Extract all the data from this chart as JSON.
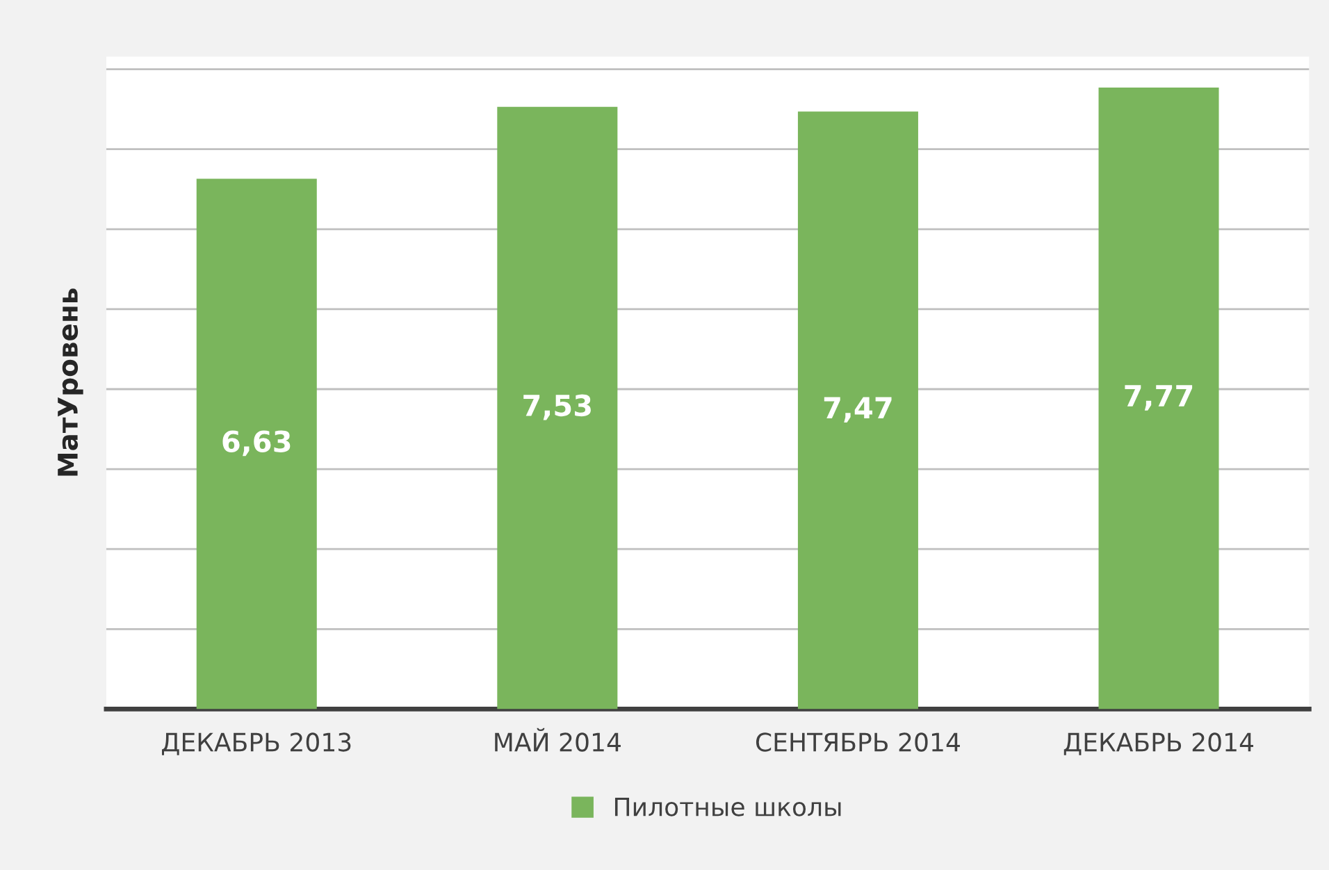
{
  "chart_data": {
    "type": "bar",
    "ylabel": "МатУровень",
    "categories": [
      "ДЕКАБРЬ 2013",
      "МАЙ 2014",
      "СЕНТЯБРЬ 2014",
      "ДЕКАБРЬ 2014"
    ],
    "series": [
      {
        "name": "Пилотные школы",
        "color": "#7ab55c",
        "values": [
          6.63,
          7.53,
          7.47,
          7.77
        ],
        "value_labels": [
          "6,63",
          "7,53",
          "7,47",
          "7,77"
        ]
      }
    ],
    "tick_labels": "x",
    "grid": "y",
    "legend": "bottom"
  }
}
